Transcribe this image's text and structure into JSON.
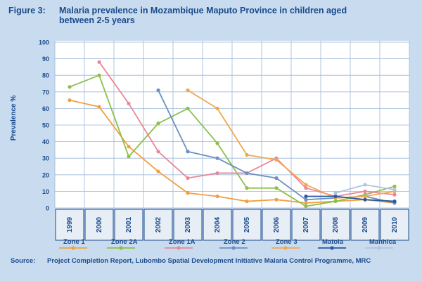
{
  "figure_label": "Figure 3:",
  "figure_title": "Malaria prevalence in Mozambique Maputo Province in children aged between 2-5 years",
  "source_label": "Source:",
  "source_text": "Project Completion Report, Lubombo Spatial Development Initiative Malaria Control Programme, MRC",
  "colors": {
    "background": "#c9dcef",
    "plot_background": "#ffffff",
    "title_text": "#1a4a8c",
    "axis_text": "#1a4a8c",
    "gridline": "#9eb8d6",
    "year_box": "#e8eef6"
  },
  "chart_data": {
    "type": "line",
    "title": "",
    "xlabel": "",
    "ylabel": "Prevalence %",
    "x": [
      "1999",
      "2000",
      "2001",
      "2002",
      "2003",
      "2004",
      "2005",
      "2006",
      "2007",
      "2008",
      "2009",
      "2010"
    ],
    "ylim": [
      0,
      100
    ],
    "yticks": [
      0,
      10,
      20,
      30,
      40,
      50,
      60,
      70,
      80,
      90,
      100
    ],
    "grid": true,
    "legend_position": "bottom",
    "series": [
      {
        "name": "Zone 1",
        "color": "#f0a040",
        "values": [
          65,
          61,
          37,
          22,
          9,
          7,
          4,
          5,
          3,
          4,
          5,
          3
        ]
      },
      {
        "name": "Zone 2A",
        "color": "#8cc04a",
        "values": [
          73,
          80,
          31,
          51,
          60,
          39,
          12,
          12,
          1,
          4,
          8,
          13
        ]
      },
      {
        "name": "Zone 1A",
        "color": "#e88898",
        "values": [
          null,
          88,
          63,
          34,
          18,
          21,
          21,
          30,
          12,
          7,
          10,
          8
        ]
      },
      {
        "name": "Zone 2",
        "color": "#6a90c4",
        "values": [
          null,
          null,
          null,
          71,
          34,
          30,
          21,
          18,
          5,
          6,
          7,
          3
        ]
      },
      {
        "name": "Zone 3",
        "color": "#f0a850",
        "values": [
          null,
          null,
          null,
          null,
          71,
          60,
          32,
          29,
          14,
          6,
          7,
          10
        ]
      },
      {
        "name": "Matola",
        "color": "#2a5a9e",
        "values": [
          null,
          null,
          null,
          null,
          null,
          null,
          null,
          null,
          7,
          7,
          5,
          4
        ]
      },
      {
        "name": "Manhica",
        "color": "#b0c4de",
        "values": [
          null,
          null,
          null,
          null,
          null,
          null,
          null,
          null,
          null,
          9,
          14,
          11
        ]
      }
    ]
  }
}
